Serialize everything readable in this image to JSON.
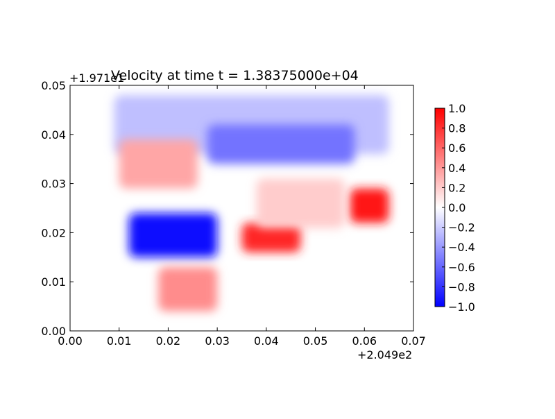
{
  "chart_data": {
    "type": "heatmap",
    "title": "Velocity at time t = 1.38375000e+04",
    "xlabel": "",
    "ylabel": "",
    "x_offset_label": "+2.049e2",
    "y_offset_label": "+1.971e1",
    "xlim": [
      0.0,
      0.07
    ],
    "ylim": [
      0.0,
      0.05
    ],
    "x_ticks": [
      "0.00",
      "0.01",
      "0.02",
      "0.03",
      "0.04",
      "0.05",
      "0.06",
      "0.07"
    ],
    "y_ticks": [
      "0.00",
      "0.01",
      "0.02",
      "0.03",
      "0.04",
      "0.05"
    ],
    "colormap": "bwr",
    "colorbar": {
      "range": [
        -1.0,
        1.0
      ],
      "ticks": [
        "1.0",
        "0.8",
        "0.6",
        "0.4",
        "0.2",
        "0.0",
        "−0.2",
        "−0.4",
        "−0.6",
        "−0.8",
        "−1.0"
      ],
      "colors": {
        "low": "#0000ff",
        "mid": "#ffffff",
        "high": "#ff0000"
      }
    },
    "grid": false,
    "regions": [
      {
        "x": [
          0.009,
          0.065
        ],
        "y": [
          0.036,
          0.048
        ],
        "value": -0.25
      },
      {
        "x": [
          0.028,
          0.058
        ],
        "y": [
          0.034,
          0.042
        ],
        "value": -0.55
      },
      {
        "x": [
          0.01,
          0.026
        ],
        "y": [
          0.029,
          0.039
        ],
        "value": 0.35
      },
      {
        "x": [
          0.012,
          0.03
        ],
        "y": [
          0.015,
          0.024
        ],
        "value": -0.95
      },
      {
        "x": [
          0.035,
          0.047
        ],
        "y": [
          0.016,
          0.022
        ],
        "value": 0.85
      },
      {
        "x": [
          0.018,
          0.03
        ],
        "y": [
          0.004,
          0.013
        ],
        "value": 0.45
      },
      {
        "x": [
          0.057,
          0.065
        ],
        "y": [
          0.022,
          0.029
        ],
        "value": 0.9
      },
      {
        "x": [
          0.038,
          0.056
        ],
        "y": [
          0.021,
          0.031
        ],
        "value": 0.2
      }
    ]
  }
}
